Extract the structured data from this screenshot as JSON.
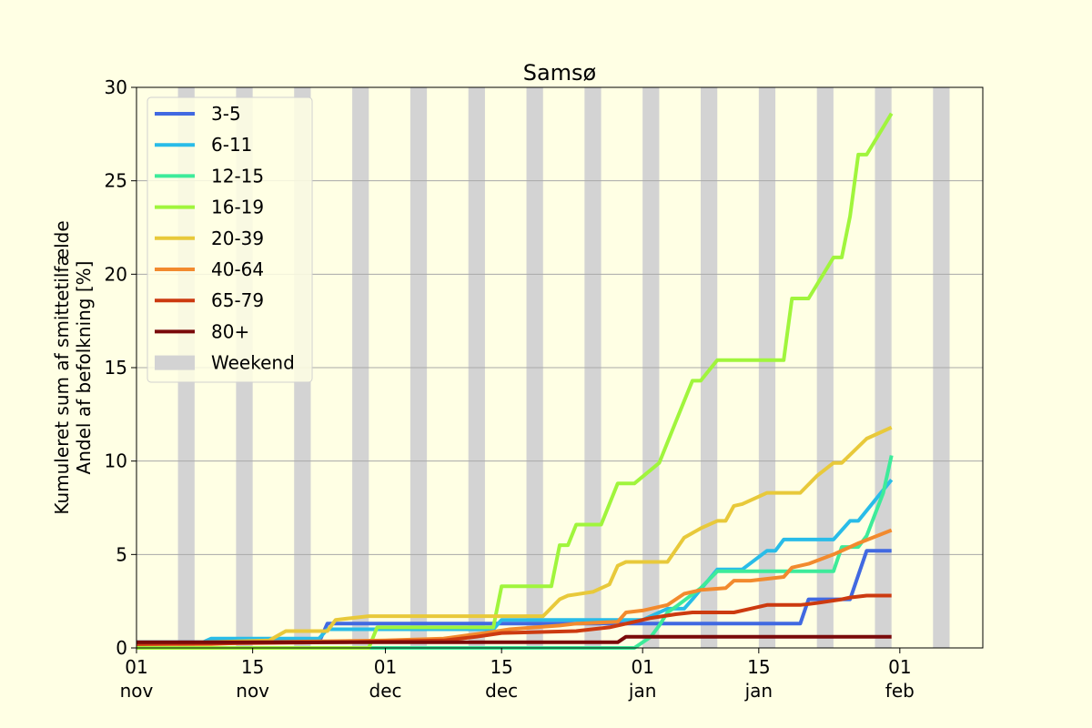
{
  "chart_data": {
    "type": "line",
    "title": "Samsø",
    "ylabel_lines": [
      "Kumuleret sum af smittetilfælde",
      "Andel af befolkning [%]"
    ],
    "xlim": [
      "2021-11-01",
      "2022-02-11"
    ],
    "ylim": [
      0,
      30
    ],
    "yticks": [
      0,
      5,
      10,
      15,
      20,
      25,
      30
    ],
    "xticks": [
      {
        "date": "2021-11-01",
        "day": "01",
        "month": "nov"
      },
      {
        "date": "2021-11-15",
        "day": "15",
        "month": "nov"
      },
      {
        "date": "2021-12-01",
        "day": "01",
        "month": "dec"
      },
      {
        "date": "2021-12-15",
        "day": "15",
        "month": "dec"
      },
      {
        "date": "2022-01-01",
        "day": "01",
        "month": "jan"
      },
      {
        "date": "2022-01-15",
        "day": "15",
        "month": "jan"
      },
      {
        "date": "2022-02-01",
        "day": "01",
        "month": "feb"
      }
    ],
    "grid": "horizontal",
    "legend_position": "upper-left",
    "weekend_label": "Weekend",
    "weekend_color": "#d3d3d3",
    "weekends": [
      "2021-11-06",
      "2021-11-13",
      "2021-11-20",
      "2021-11-27",
      "2021-12-04",
      "2021-12-11",
      "2021-12-18",
      "2021-12-25",
      "2022-01-01",
      "2022-01-08",
      "2022-01-15",
      "2022-01-22",
      "2022-01-29",
      "2022-02-05"
    ],
    "series": [
      {
        "name": "3-5",
        "color": "#4169e1",
        "points": [
          [
            "2021-11-01",
            0.3
          ],
          [
            "2021-11-23",
            0.3
          ],
          [
            "2021-11-24",
            1.3
          ],
          [
            "2021-12-14",
            1.3
          ],
          [
            "2021-12-15",
            1.3
          ],
          [
            "2022-01-09",
            1.3
          ],
          [
            "2022-01-20",
            1.3
          ],
          [
            "2022-01-21",
            2.6
          ],
          [
            "2022-01-26",
            2.6
          ],
          [
            "2022-01-28",
            5.2
          ],
          [
            "2022-01-31",
            5.2
          ]
        ]
      },
      {
        "name": "6-11",
        "color": "#29bce8",
        "points": [
          [
            "2021-11-01",
            0.3
          ],
          [
            "2021-11-09",
            0.3
          ],
          [
            "2021-11-10",
            0.5
          ],
          [
            "2021-11-23",
            0.5
          ],
          [
            "2021-11-24",
            1.0
          ],
          [
            "2021-12-14",
            1.0
          ],
          [
            "2021-12-15",
            1.5
          ],
          [
            "2022-01-01",
            1.5
          ],
          [
            "2022-01-04",
            2.1
          ],
          [
            "2022-01-06",
            2.1
          ],
          [
            "2022-01-07",
            2.6
          ],
          [
            "2022-01-10",
            4.2
          ],
          [
            "2022-01-13",
            4.2
          ],
          [
            "2022-01-16",
            5.2
          ],
          [
            "2022-01-17",
            5.2
          ],
          [
            "2022-01-18",
            5.8
          ],
          [
            "2022-01-24",
            5.8
          ],
          [
            "2022-01-26",
            6.8
          ],
          [
            "2022-01-27",
            6.8
          ],
          [
            "2022-01-31",
            9.0
          ]
        ]
      },
      {
        "name": "12-15",
        "color": "#3deb9a",
        "points": [
          [
            "2021-11-01",
            0.0
          ],
          [
            "2021-12-31",
            0.0
          ],
          [
            "2022-01-02",
            0.6
          ],
          [
            "2022-01-03",
            1.2
          ],
          [
            "2022-01-04",
            1.9
          ],
          [
            "2022-01-05",
            2.2
          ],
          [
            "2022-01-08",
            3.2
          ],
          [
            "2022-01-10",
            4.1
          ],
          [
            "2022-01-24",
            4.1
          ],
          [
            "2022-01-25",
            5.4
          ],
          [
            "2022-01-27",
            5.4
          ],
          [
            "2022-01-28",
            6.0
          ],
          [
            "2022-01-30",
            8.3
          ],
          [
            "2022-01-31",
            10.3
          ]
        ]
      },
      {
        "name": "16-19",
        "color": "#a0f53c",
        "points": [
          [
            "2021-11-01",
            0.0
          ],
          [
            "2021-11-29",
            0.0
          ],
          [
            "2021-11-30",
            1.1
          ],
          [
            "2021-12-14",
            1.1
          ],
          [
            "2021-12-15",
            3.3
          ],
          [
            "2021-12-21",
            3.3
          ],
          [
            "2021-12-22",
            5.5
          ],
          [
            "2021-12-23",
            5.5
          ],
          [
            "2021-12-24",
            6.6
          ],
          [
            "2021-12-27",
            6.6
          ],
          [
            "2021-12-29",
            8.8
          ],
          [
            "2021-12-31",
            8.8
          ],
          [
            "2022-01-03",
            9.9
          ],
          [
            "2022-01-05",
            12.1
          ],
          [
            "2022-01-07",
            14.3
          ],
          [
            "2022-01-08",
            14.3
          ],
          [
            "2022-01-10",
            15.4
          ],
          [
            "2022-01-18",
            15.4
          ],
          [
            "2022-01-19",
            18.7
          ],
          [
            "2022-01-21",
            18.7
          ],
          [
            "2022-01-24",
            20.9
          ],
          [
            "2022-01-25",
            20.9
          ],
          [
            "2022-01-26",
            23.1
          ],
          [
            "2022-01-27",
            26.4
          ],
          [
            "2022-01-28",
            26.4
          ],
          [
            "2022-01-31",
            28.6
          ]
        ]
      },
      {
        "name": "20-39",
        "color": "#e8c93a",
        "points": [
          [
            "2021-11-01",
            0.2
          ],
          [
            "2021-11-17",
            0.4
          ],
          [
            "2021-11-19",
            0.9
          ],
          [
            "2021-11-24",
            0.9
          ],
          [
            "2021-11-25",
            1.5
          ],
          [
            "2021-11-27",
            1.6
          ],
          [
            "2021-11-29",
            1.7
          ],
          [
            "2021-12-20",
            1.7
          ],
          [
            "2021-12-22",
            2.6
          ],
          [
            "2021-12-23",
            2.8
          ],
          [
            "2021-12-26",
            3.0
          ],
          [
            "2021-12-28",
            3.4
          ],
          [
            "2021-12-29",
            4.4
          ],
          [
            "2021-12-30",
            4.6
          ],
          [
            "2022-01-04",
            4.6
          ],
          [
            "2022-01-06",
            5.9
          ],
          [
            "2022-01-08",
            6.4
          ],
          [
            "2022-01-10",
            6.8
          ],
          [
            "2022-01-11",
            6.8
          ],
          [
            "2022-01-12",
            7.6
          ],
          [
            "2022-01-13",
            7.7
          ],
          [
            "2022-01-14",
            7.9
          ],
          [
            "2022-01-16",
            8.3
          ],
          [
            "2022-01-20",
            8.3
          ],
          [
            "2022-01-22",
            9.2
          ],
          [
            "2022-01-24",
            9.9
          ],
          [
            "2022-01-25",
            9.9
          ],
          [
            "2022-01-28",
            11.2
          ],
          [
            "2022-01-31",
            11.8
          ]
        ]
      },
      {
        "name": "40-64",
        "color": "#f28a2e",
        "points": [
          [
            "2021-11-01",
            0.2
          ],
          [
            "2021-11-10",
            0.2
          ],
          [
            "2021-11-15",
            0.3
          ],
          [
            "2021-12-01",
            0.4
          ],
          [
            "2021-12-08",
            0.5
          ],
          [
            "2021-12-13",
            0.8
          ],
          [
            "2021-12-16",
            1.0
          ],
          [
            "2021-12-22",
            1.2
          ],
          [
            "2021-12-24",
            1.3
          ],
          [
            "2021-12-29",
            1.4
          ],
          [
            "2021-12-30",
            1.9
          ],
          [
            "2022-01-01",
            2.0
          ],
          [
            "2022-01-04",
            2.3
          ],
          [
            "2022-01-06",
            2.9
          ],
          [
            "2022-01-08",
            3.1
          ],
          [
            "2022-01-11",
            3.2
          ],
          [
            "2022-01-12",
            3.6
          ],
          [
            "2022-01-14",
            3.6
          ],
          [
            "2022-01-18",
            3.8
          ],
          [
            "2022-01-19",
            4.3
          ],
          [
            "2022-01-21",
            4.5
          ],
          [
            "2022-01-24",
            5.0
          ],
          [
            "2022-01-27",
            5.6
          ],
          [
            "2022-01-31",
            6.3
          ]
        ]
      },
      {
        "name": "65-79",
        "color": "#cc3a10",
        "points": [
          [
            "2021-11-01",
            0.2
          ],
          [
            "2021-11-25",
            0.3
          ],
          [
            "2021-12-08",
            0.4
          ],
          [
            "2021-12-12",
            0.6
          ],
          [
            "2021-12-15",
            0.8
          ],
          [
            "2021-12-24",
            0.9
          ],
          [
            "2021-12-28",
            1.1
          ],
          [
            "2021-12-31",
            1.4
          ],
          [
            "2022-01-02",
            1.6
          ],
          [
            "2022-01-05",
            1.8
          ],
          [
            "2022-01-07",
            1.9
          ],
          [
            "2022-01-12",
            1.9
          ],
          [
            "2022-01-14",
            2.1
          ],
          [
            "2022-01-16",
            2.3
          ],
          [
            "2022-01-20",
            2.3
          ],
          [
            "2022-01-22",
            2.4
          ],
          [
            "2022-01-25",
            2.6
          ],
          [
            "2022-01-26",
            2.7
          ],
          [
            "2022-01-28",
            2.8
          ],
          [
            "2022-01-31",
            2.8
          ]
        ]
      },
      {
        "name": "80+",
        "color": "#7a0a0a",
        "points": [
          [
            "2021-11-01",
            0.3
          ],
          [
            "2021-12-29",
            0.3
          ],
          [
            "2021-12-30",
            0.6
          ],
          [
            "2022-01-31",
            0.6
          ]
        ]
      }
    ]
  }
}
